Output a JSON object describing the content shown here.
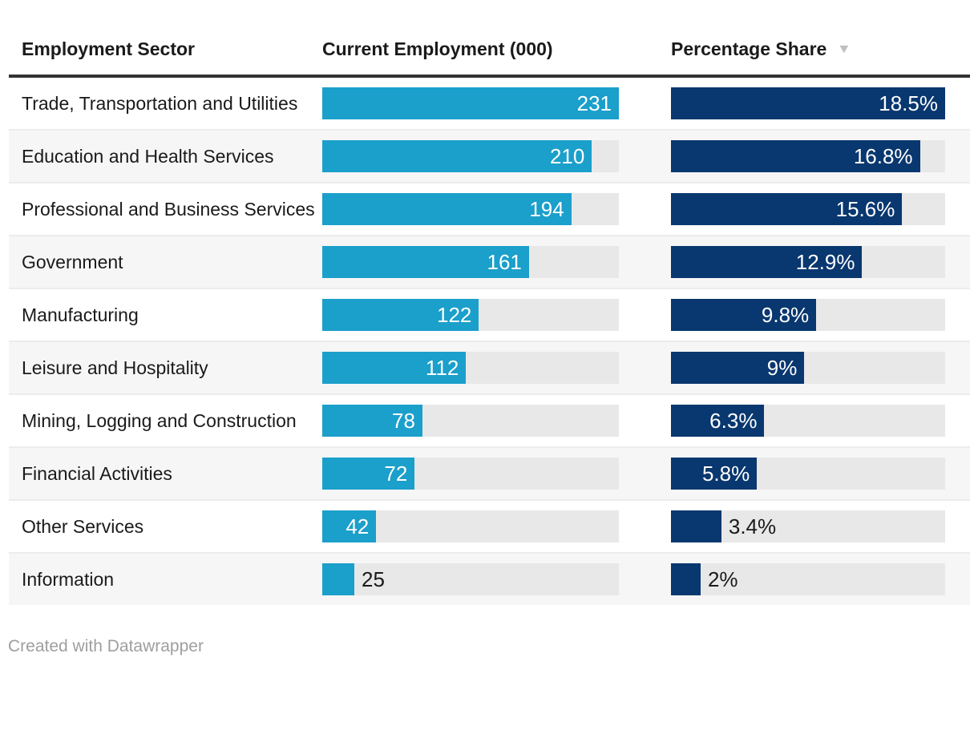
{
  "colors": {
    "employment-bar": "#1b9fcb",
    "share-bar": "#09376f",
    "bar-track": "#e8e8e8",
    "alt-row-bg": "#f6f6f6",
    "separator": "#ececec",
    "header-border": "#333333",
    "text": "#1a1a1a",
    "bar-label-in": "#ffffff",
    "muted": "#9e9e9e",
    "sort-icon": "#c0c0c0"
  },
  "table": {
    "columns": [
      {
        "label": "Employment Sector"
      },
      {
        "label": "Current Employment (000)"
      },
      {
        "label": "Percentage Share"
      }
    ],
    "sort": {
      "column": "Percentage Share",
      "direction": "descending",
      "icon": "▼"
    }
  },
  "rows": [
    {
      "sector": "Trade, Transportation and Utilities",
      "employment": 231,
      "employment_label": "231",
      "share": 18.5,
      "share_label": "18.5%"
    },
    {
      "sector": "Education and Health Services",
      "employment": 210,
      "employment_label": "210",
      "share": 16.8,
      "share_label": "16.8%"
    },
    {
      "sector": "Professional and Business Services",
      "employment": 194,
      "employment_label": "194",
      "share": 15.6,
      "share_label": "15.6%"
    },
    {
      "sector": "Government",
      "employment": 161,
      "employment_label": "161",
      "share": 12.9,
      "share_label": "12.9%"
    },
    {
      "sector": "Manufacturing",
      "employment": 122,
      "employment_label": "122",
      "share": 9.8,
      "share_label": "9.8%"
    },
    {
      "sector": "Leisure and Hospitality",
      "employment": 112,
      "employment_label": "112",
      "share": 9,
      "share_label": "9%"
    },
    {
      "sector": "Mining, Logging and Construction",
      "employment": 78,
      "employment_label": "78",
      "share": 6.3,
      "share_label": "6.3%"
    },
    {
      "sector": "Financial Activities",
      "employment": 72,
      "employment_label": "72",
      "share": 5.8,
      "share_label": "5.8%"
    },
    {
      "sector": "Other Services",
      "employment": 42,
      "employment_label": "42",
      "share": 3.4,
      "share_label": "3.4%"
    },
    {
      "sector": "Information",
      "employment": 25,
      "employment_label": "25",
      "share": 2,
      "share_label": "2%"
    }
  ],
  "footer": {
    "credit": "Created with Datawrapper"
  },
  "chart_data": {
    "type": "table",
    "title": "",
    "columns": [
      "Employment Sector",
      "Current Employment (000)",
      "Percentage Share"
    ],
    "rows": [
      [
        "Trade, Transportation and Utilities",
        231,
        18.5
      ],
      [
        "Education and Health Services",
        210,
        16.8
      ],
      [
        "Professional and Business Services",
        194,
        15.6
      ],
      [
        "Government",
        161,
        12.9
      ],
      [
        "Manufacturing",
        122,
        9.8
      ],
      [
        "Leisure and Hospitality",
        112,
        9
      ],
      [
        "Mining, Logging and Construction",
        78,
        6.3
      ],
      [
        "Financial Activities",
        72,
        5.8
      ],
      [
        "Other Services",
        42,
        3.4
      ],
      [
        "Information",
        25,
        2
      ]
    ],
    "bar_columns": {
      "Current Employment (000)": {
        "type": "bar",
        "max": 231,
        "color": "#1b9fcb"
      },
      "Percentage Share": {
        "type": "bar",
        "max": 18.5,
        "color": "#09376f",
        "unit": "%"
      }
    },
    "sorted_by": "Percentage Share",
    "sort_direction": "descending",
    "legend_position": "none",
    "grid": false
  }
}
